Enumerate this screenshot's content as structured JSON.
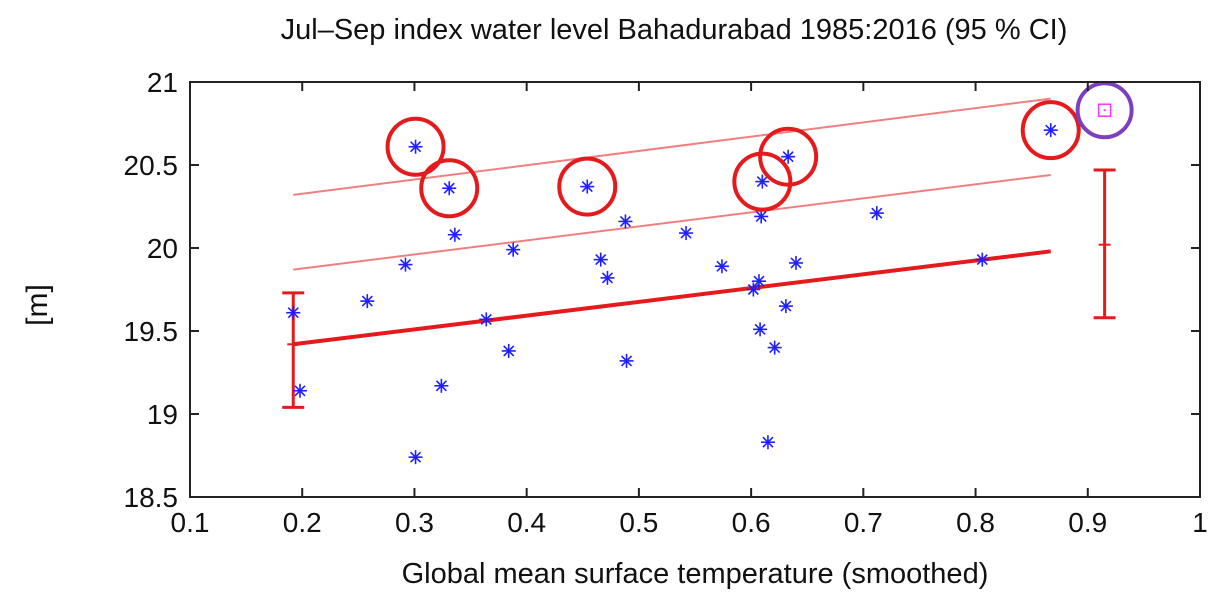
{
  "chart_data": {
    "type": "scatter",
    "title": "Jul–Sep index water level Bahadurabad 1985:2016 (95 % CI)",
    "xlabel": "Global mean surface temperature (smoothed)",
    "ylabel": "[m]",
    "xlim": [
      0.1,
      1.0
    ],
    "ylim": [
      18.5,
      21.0
    ],
    "x_ticks": [
      "0.1",
      "0.2",
      "0.3",
      "0.4",
      "0.5",
      "0.6",
      "0.7",
      "0.8",
      "0.9",
      "1"
    ],
    "y_ticks": [
      "18.5",
      "19",
      "19.5",
      "20",
      "20.5",
      "21"
    ],
    "grid": false,
    "points": [
      {
        "x": 0.192,
        "y": 19.61
      },
      {
        "x": 0.198,
        "y": 19.14
      },
      {
        "x": 0.258,
        "y": 19.68
      },
      {
        "x": 0.292,
        "y": 19.9
      },
      {
        "x": 0.301,
        "y": 20.61,
        "circled": true
      },
      {
        "x": 0.301,
        "y": 18.74
      },
      {
        "x": 0.324,
        "y": 19.17
      },
      {
        "x": 0.331,
        "y": 20.36,
        "circled": true
      },
      {
        "x": 0.336,
        "y": 20.08
      },
      {
        "x": 0.364,
        "y": 19.57
      },
      {
        "x": 0.384,
        "y": 19.38
      },
      {
        "x": 0.388,
        "y": 19.99
      },
      {
        "x": 0.454,
        "y": 20.37,
        "circled": true
      },
      {
        "x": 0.466,
        "y": 19.93
      },
      {
        "x": 0.472,
        "y": 19.82
      },
      {
        "x": 0.488,
        "y": 20.16
      },
      {
        "x": 0.489,
        "y": 19.32
      },
      {
        "x": 0.542,
        "y": 20.09
      },
      {
        "x": 0.574,
        "y": 19.89
      },
      {
        "x": 0.602,
        "y": 19.75
      },
      {
        "x": 0.607,
        "y": 19.8
      },
      {
        "x": 0.608,
        "y": 19.51
      },
      {
        "x": 0.609,
        "y": 20.19
      },
      {
        "x": 0.61,
        "y": 20.4,
        "circled": true
      },
      {
        "x": 0.615,
        "y": 18.83
      },
      {
        "x": 0.621,
        "y": 19.4
      },
      {
        "x": 0.631,
        "y": 19.65
      },
      {
        "x": 0.633,
        "y": 20.55,
        "circled": true
      },
      {
        "x": 0.64,
        "y": 19.91
      },
      {
        "x": 0.712,
        "y": 20.21
      },
      {
        "x": 0.806,
        "y": 19.93
      },
      {
        "x": 0.867,
        "y": 20.71,
        "circled": true
      }
    ],
    "fit_line": {
      "x": [
        0.192,
        0.867
      ],
      "y": [
        19.42,
        19.98
      ]
    },
    "upper_lines": [
      {
        "x": [
          0.192,
          0.867
        ],
        "y": [
          19.87,
          20.44
        ]
      },
      {
        "x": [
          0.192,
          0.867
        ],
        "y": [
          20.32,
          20.9
        ]
      }
    ],
    "error_bars": [
      {
        "x": 0.192,
        "center": 19.42,
        "low": 19.04,
        "high": 19.73
      },
      {
        "x": 0.915,
        "center": 20.02,
        "low": 19.58,
        "high": 20.47
      }
    ],
    "highlight_point": {
      "x": 0.915,
      "y": 20.83
    },
    "colors": {
      "points": "#1f1fff",
      "fit": "#e41a1c",
      "bounds": "#f08080",
      "circles": "#e41a1c",
      "highlight_circle": "#7b3fbf",
      "highlight_marker": "#ff33ff"
    }
  }
}
